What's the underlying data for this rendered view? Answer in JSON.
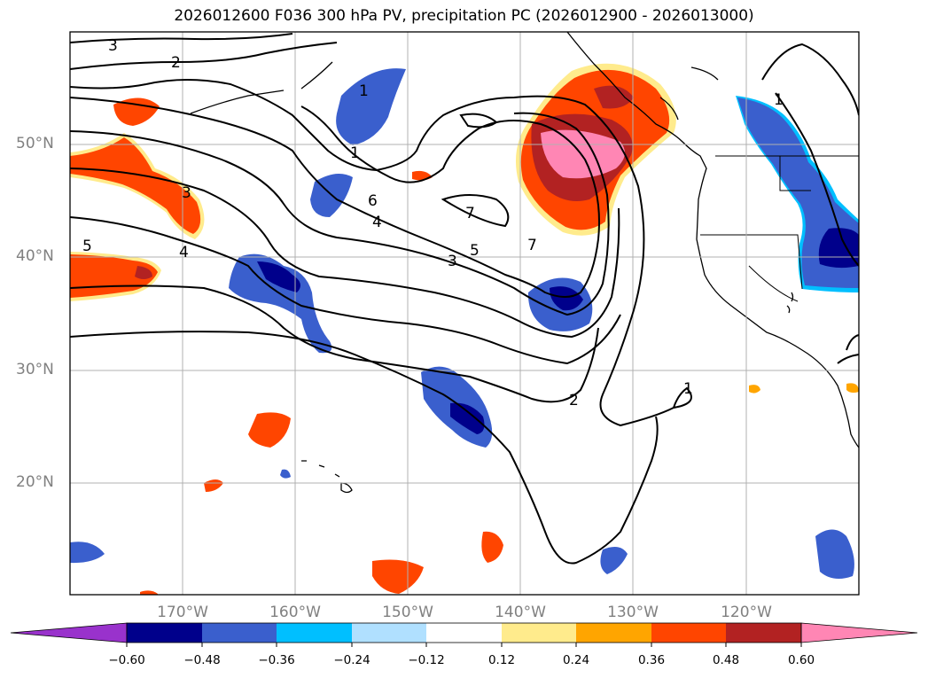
{
  "title": "2026012600 F036 300 hPa PV, precipitation PC (2026012900 - 2026013000)",
  "map": {
    "region": "North Pacific and western North America",
    "lat_labels": [
      "50°N",
      "40°N",
      "30°N",
      "20°N"
    ],
    "lon_labels": [
      "170°W",
      "160°W",
      "150°W",
      "140°W",
      "130°W",
      "120°W"
    ],
    "pv_contour_labels": [
      "3",
      "2",
      "1",
      "1",
      "3",
      "6",
      "4",
      "4",
      "5",
      "3",
      "7",
      "7",
      "5",
      "2",
      "1",
      "1"
    ]
  },
  "colorbar": {
    "ticks": [
      "−0.60",
      "−0.48",
      "−0.36",
      "−0.24",
      "−0.12",
      "0.12",
      "0.24",
      "0.36",
      "0.48",
      "0.60"
    ],
    "colors": [
      "#9932cc",
      "#00008b",
      "#3a5fcd",
      "#00bfff",
      "#b0e0ff",
      "#ffffff",
      "#ffeb8c",
      "#ffa500",
      "#ff4500",
      "#b22222",
      "#ff86b4"
    ]
  },
  "chart_data": {
    "type": "filled-contour-map",
    "title": "2026012600 F036 300 hPa PV, precipitation PC (2026012900 - 2026013000)",
    "field_contours": "300 hPa PV (PVU)",
    "field_fill": "precipitation PC",
    "lat_range": [
      10,
      60
    ],
    "lon_range": [
      -180,
      -110
    ],
    "pv_contour_levels": [
      1,
      2,
      3,
      4,
      5,
      6,
      7
    ],
    "colorbar_levels": [
      -0.6,
      -0.48,
      -0.36,
      -0.24,
      -0.12,
      0.12,
      0.24,
      0.36,
      0.48,
      0.6
    ]
  }
}
